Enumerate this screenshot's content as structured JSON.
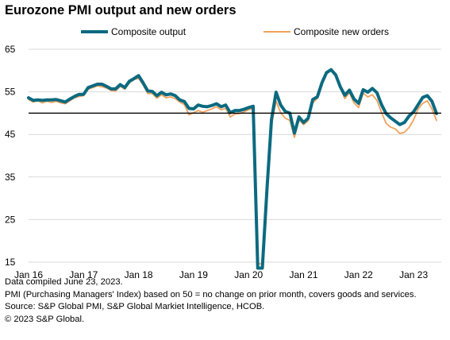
{
  "title": "Eurozone PMI output and new orders",
  "legend": {
    "composite_output": "Composite output",
    "composite_new_orders": "Composite new orders"
  },
  "colors": {
    "composite_output": "#0b6a80",
    "composite_new_orders": "#f2a25b",
    "gridline": "#d9d9d9",
    "reference_line": "#000000"
  },
  "notes": [
    "Data compiled June 23, 2023.",
    "PMI (Purchasing Managers' Index) based on 50 = no change on prior month, covers goods and services.",
    "Source: S&P Global PMI, S&P Global Markiet Intelligence, HCOB.",
    "© 2023 S&P Global."
  ],
  "chart_data": {
    "type": "line",
    "x_start": "Jan 16",
    "x_frequency": "monthly",
    "x_tick_labels": [
      "Jan 16",
      "Jan 17",
      "Jan 18",
      "Jan 19",
      "Jan 20",
      "Jan 21",
      "Jan 22",
      "Jan 23"
    ],
    "y_ticks": [
      15,
      25,
      35,
      45,
      55,
      65
    ],
    "ylim": [
      15,
      65
    ],
    "reference_line": 50,
    "grid": "horizontal",
    "legend_position": "top",
    "series": [
      {
        "name": "Composite output",
        "values": [
          53.6,
          53.0,
          53.1,
          53.0,
          53.1,
          53.1,
          53.2,
          52.9,
          52.6,
          53.3,
          53.9,
          54.4,
          54.4,
          56.0,
          56.4,
          56.8,
          56.8,
          56.3,
          55.7,
          55.7,
          56.7,
          56.0,
          57.5,
          58.1,
          58.8,
          57.1,
          55.2,
          55.1,
          54.1,
          54.9,
          54.3,
          54.5,
          54.1,
          53.1,
          52.7,
          51.1,
          51.0,
          51.9,
          51.6,
          51.5,
          51.8,
          52.2,
          51.5,
          51.9,
          50.1,
          50.6,
          50.6,
          50.9,
          51.3,
          51.6,
          13.6,
          13.6,
          31.9,
          48.5,
          54.9,
          51.9,
          50.4,
          50.0,
          45.3,
          49.1,
          47.8,
          48.8,
          53.2,
          53.8,
          57.1,
          59.5,
          60.2,
          59.0,
          56.2,
          54.2,
          55.4,
          53.3,
          52.3,
          55.5,
          54.9,
          55.8,
          54.8,
          52.0,
          49.9,
          48.9,
          48.1,
          47.3,
          47.8,
          49.3,
          50.3,
          52.0,
          53.7,
          54.1,
          52.8,
          49.9
        ],
        "style": "thick"
      },
      {
        "name": "Composite new orders",
        "values": [
          53.2,
          52.6,
          52.9,
          52.4,
          52.8,
          52.5,
          52.8,
          52.4,
          52.2,
          52.9,
          53.6,
          53.9,
          54.1,
          55.6,
          56.0,
          56.4,
          56.2,
          55.9,
          55.3,
          55.2,
          56.3,
          55.6,
          57.1,
          57.9,
          58.2,
          56.6,
          54.6,
          54.6,
          53.5,
          54.3,
          53.6,
          53.8,
          53.4,
          52.6,
          52.0,
          49.6,
          50.1,
          50.6,
          50.2,
          50.6,
          51.0,
          51.5,
          50.8,
          51.1,
          49.1,
          49.8,
          49.9,
          50.3,
          50.8,
          51.0,
          14.6,
          14.6,
          30.4,
          47.2,
          52.8,
          50.1,
          48.8,
          48.3,
          44.3,
          48.4,
          47.3,
          48.2,
          52.4,
          53.5,
          56.8,
          59.2,
          60.0,
          58.6,
          55.9,
          53.4,
          54.8,
          52.4,
          51.3,
          54.7,
          53.8,
          54.3,
          53.0,
          50.2,
          47.6,
          46.7,
          46.3,
          45.2,
          45.5,
          46.6,
          48.4,
          51.0,
          52.3,
          52.9,
          51.0,
          48.3
        ],
        "style": "thin"
      }
    ]
  }
}
